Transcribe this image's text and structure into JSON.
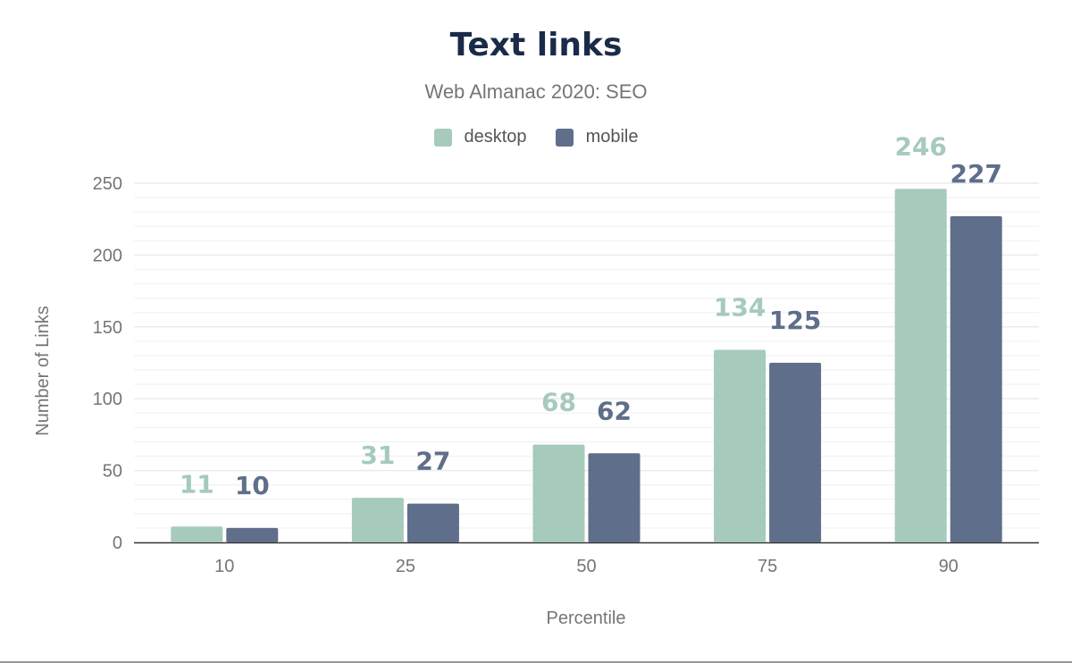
{
  "chart_data": {
    "type": "bar",
    "title": "Text links",
    "subtitle": "Web Almanac 2020: SEO",
    "xlabel": "Percentile",
    "ylabel": "Number of Links",
    "categories": [
      "10",
      "25",
      "50",
      "75",
      "90"
    ],
    "series": [
      {
        "name": "desktop",
        "color": "#a6cabb",
        "values": [
          11,
          31,
          68,
          134,
          246
        ]
      },
      {
        "name": "mobile",
        "color": "#5f6e8a",
        "values": [
          10,
          27,
          62,
          125,
          227
        ]
      }
    ],
    "ylim": [
      0,
      250
    ],
    "yticks": [
      0,
      50,
      100,
      150,
      200,
      250
    ],
    "grid": true,
    "legend": "top-center",
    "data_labels": true
  }
}
